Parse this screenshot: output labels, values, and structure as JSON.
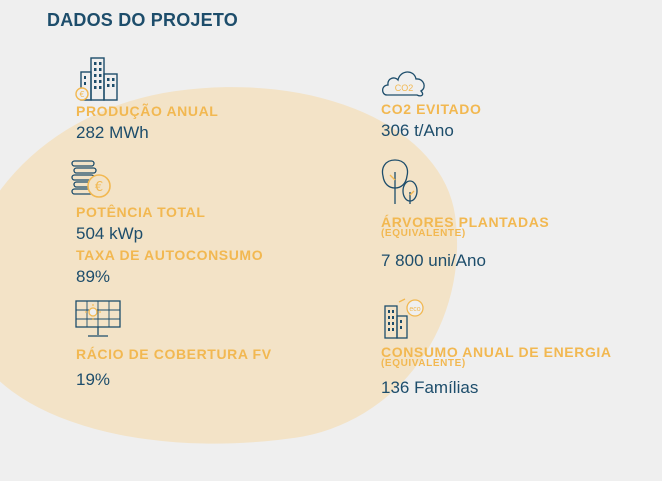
{
  "section_title": "DADOS DO PROJETO",
  "colors": {
    "navy": "#1d4d6b",
    "gold": "#f2b851",
    "blob": "#f3e3c7",
    "background": "#efefef"
  },
  "metrics": {
    "producao_anual": {
      "label": "PRODUÇÃO ANUAL",
      "value": "282 MWh",
      "icon": "building-euro-icon"
    },
    "potencia_total": {
      "label": "POTÊNCIA TOTAL",
      "value": "504 kWp",
      "icon": "coins-euro-icon"
    },
    "taxa_autoconsumo": {
      "label": "TAXA DE AUTOCONSUMO",
      "value": "89%"
    },
    "racio_cobertura": {
      "label": "RÁCIO DE COBERTURA FV",
      "value": "19%",
      "icon": "solar-panel-icon"
    },
    "co2_evitado": {
      "label": "CO2 EVITADO",
      "value": "306 t/Ano",
      "icon": "co2-cloud-icon",
      "icon_text": "CO2"
    },
    "arvores_plantadas": {
      "label": "ÁRVORES PLANTADAS",
      "sublabel": "(EQUIVALENTE)",
      "value": "7 800 uni/Ano",
      "icon": "trees-icon"
    },
    "consumo_energia": {
      "label": "CONSUMO ANUAL DE ENERGIA",
      "sublabel": "(EQUIVALENTE)",
      "value": "136 Famílias",
      "icon": "eco-building-icon",
      "icon_text": "eco"
    }
  }
}
